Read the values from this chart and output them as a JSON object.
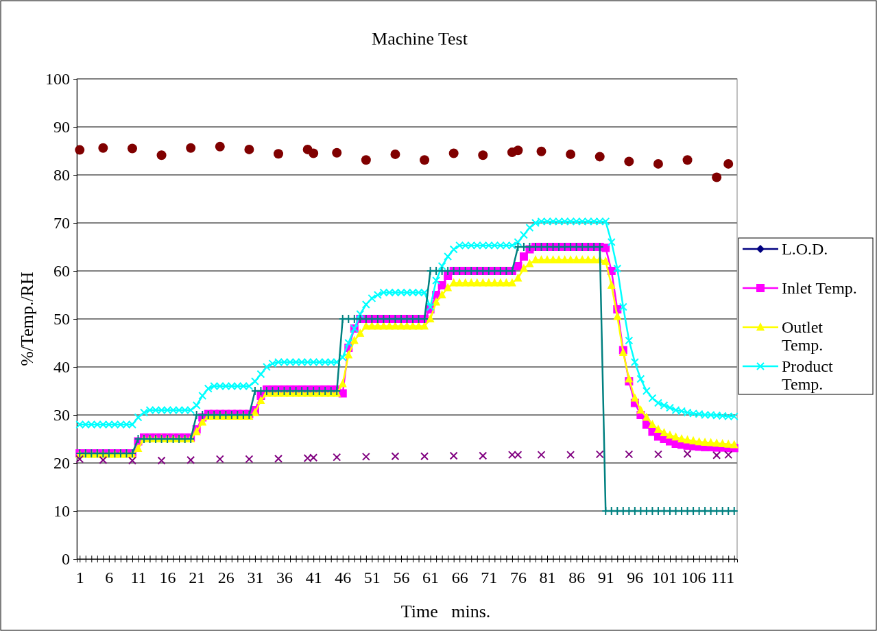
{
  "chart_data": {
    "type": "line",
    "title": "Machine Test",
    "xlabel": "Time   mins.",
    "ylabel": "%/Temp./RH",
    "x": [
      1,
      2,
      3,
      4,
      5,
      6,
      7,
      8,
      9,
      10,
      11,
      12,
      13,
      14,
      15,
      16,
      17,
      18,
      19,
      20,
      21,
      22,
      23,
      24,
      25,
      26,
      27,
      28,
      29,
      30,
      31,
      32,
      33,
      34,
      35,
      36,
      37,
      38,
      39,
      40,
      41,
      42,
      43,
      44,
      45,
      46,
      47,
      48,
      49,
      50,
      51,
      52,
      53,
      54,
      55,
      56,
      57,
      58,
      59,
      60,
      61,
      62,
      63,
      64,
      65,
      66,
      67,
      68,
      69,
      70,
      71,
      72,
      73,
      74,
      75,
      76,
      77,
      78,
      79,
      80,
      81,
      82,
      83,
      84,
      85,
      86,
      87,
      88,
      89,
      90,
      91,
      92,
      93,
      94,
      95,
      96,
      97,
      98,
      99,
      100,
      101,
      102,
      103,
      104,
      105,
      106,
      107,
      108,
      109,
      110,
      111,
      112,
      113
    ],
    "xlim": [
      0.5,
      113.5
    ],
    "xticks": [
      1,
      {
        "value": 2,
        "label": null
      },
      {
        "value": 3,
        "label": null
      },
      {
        "value": 4,
        "label": null
      },
      {
        "value": 5,
        "label": null
      },
      6,
      {
        "value": 7,
        "label": null
      },
      {
        "value": 8,
        "label": null
      },
      {
        "value": 9,
        "label": null
      },
      {
        "value": 10,
        "label": null
      },
      11,
      {
        "value": 12,
        "label": null
      },
      {
        "value": 13,
        "label": null
      },
      {
        "value": 14,
        "label": null
      },
      {
        "value": 15,
        "label": null
      },
      16,
      {
        "value": 17,
        "label": null
      },
      {
        "value": 18,
        "label": null
      },
      {
        "value": 19,
        "label": null
      },
      {
        "value": 20,
        "label": null
      },
      21,
      {
        "value": 22,
        "label": null
      },
      {
        "value": 23,
        "label": null
      },
      {
        "value": 24,
        "label": null
      },
      {
        "value": 25,
        "label": null
      },
      26,
      {
        "value": 27,
        "label": null
      },
      {
        "value": 28,
        "label": null
      },
      {
        "value": 29,
        "label": null
      },
      {
        "value": 30,
        "label": null
      },
      31,
      {
        "value": 32,
        "label": null
      },
      {
        "value": 33,
        "label": null
      },
      {
        "value": 34,
        "label": null
      },
      {
        "value": 35,
        "label": null
      },
      36,
      {
        "value": 37,
        "label": null
      },
      {
        "value": 38,
        "label": null
      },
      {
        "value": 39,
        "label": null
      },
      {
        "value": 40,
        "label": null
      },
      41,
      {
        "value": 42,
        "label": null
      },
      {
        "value": 43,
        "label": null
      },
      {
        "value": 44,
        "label": null
      },
      {
        "value": 45,
        "label": null
      },
      46,
      {
        "value": 47,
        "label": null
      },
      {
        "value": 48,
        "label": null
      },
      {
        "value": 49,
        "label": null
      },
      {
        "value": 50,
        "label": null
      },
      51,
      {
        "value": 52,
        "label": null
      },
      {
        "value": 53,
        "label": null
      },
      {
        "value": 54,
        "label": null
      },
      {
        "value": 55,
        "label": null
      },
      56,
      {
        "value": 57,
        "label": null
      },
      {
        "value": 58,
        "label": null
      },
      {
        "value": 59,
        "label": null
      },
      {
        "value": 60,
        "label": null
      },
      61,
      {
        "value": 62,
        "label": null
      },
      {
        "value": 63,
        "label": null
      },
      {
        "value": 64,
        "label": null
      },
      {
        "value": 65,
        "label": null
      },
      66,
      {
        "value": 67,
        "label": null
      },
      {
        "value": 68,
        "label": null
      },
      {
        "value": 69,
        "label": null
      },
      {
        "value": 70,
        "label": null
      },
      71,
      {
        "value": 72,
        "label": null
      },
      {
        "value": 73,
        "label": null
      },
      {
        "value": 74,
        "label": null
      },
      {
        "value": 75,
        "label": null
      },
      76,
      {
        "value": 77,
        "label": null
      },
      {
        "value": 78,
        "label": null
      },
      {
        "value": 79,
        "label": null
      },
      {
        "value": 80,
        "label": null
      },
      81,
      {
        "value": 82,
        "label": null
      },
      {
        "value": 83,
        "label": null
      },
      {
        "value": 84,
        "label": null
      },
      {
        "value": 85,
        "label": null
      },
      86,
      {
        "value": 87,
        "label": null
      },
      {
        "value": 88,
        "label": null
      },
      {
        "value": 89,
        "label": null
      },
      {
        "value": 90,
        "label": null
      },
      91,
      {
        "value": 92,
        "label": null
      },
      {
        "value": 93,
        "label": null
      },
      {
        "value": 94,
        "label": null
      },
      {
        "value": 95,
        "label": null
      },
      96,
      {
        "value": 97,
        "label": null
      },
      {
        "value": 98,
        "label": null
      },
      {
        "value": 99,
        "label": null
      },
      {
        "value": 100,
        "label": null
      },
      101,
      {
        "value": 102,
        "label": null
      },
      {
        "value": 103,
        "label": null
      },
      {
        "value": 104,
        "label": null
      },
      {
        "value": 105,
        "label": null
      },
      106,
      {
        "value": 107,
        "label": null
      },
      {
        "value": 108,
        "label": null
      },
      {
        "value": 109,
        "label": null
      },
      {
        "value": 110,
        "label": null
      },
      111,
      {
        "value": 112,
        "label": null
      },
      {
        "value": 113,
        "label": null
      }
    ],
    "ylim": [
      0,
      100
    ],
    "yticks": [
      0,
      10,
      20,
      30,
      40,
      50,
      60,
      70,
      80,
      90,
      100
    ],
    "grid": "y",
    "legend": "right",
    "series": [
      {
        "name": "L.O.D.",
        "color": "#000080",
        "marker": "diamond",
        "values": [
          null,
          null,
          null,
          null,
          null,
          null,
          null,
          null,
          null,
          null,
          null,
          null,
          null,
          null,
          null,
          null,
          null,
          null,
          null,
          null,
          null,
          null,
          null,
          null,
          null,
          null,
          null,
          null,
          null,
          null,
          null,
          null,
          null,
          null,
          null,
          null,
          null,
          null,
          null,
          null,
          null,
          null,
          null,
          null,
          null,
          null,
          null,
          null,
          null,
          null,
          null,
          null,
          null,
          null,
          null,
          null,
          null,
          null,
          null,
          null,
          null,
          null,
          null,
          null,
          null,
          null,
          null,
          null,
          null,
          null,
          null,
          null,
          null,
          null,
          null,
          null,
          null,
          null,
          null,
          null,
          null,
          null,
          null,
          null,
          null,
          null,
          null,
          null,
          null,
          null,
          null,
          null,
          null,
          null,
          null,
          null,
          null,
          null,
          null,
          null,
          null,
          null,
          null,
          null,
          null,
          null,
          null,
          null,
          null,
          null,
          null,
          null,
          null
        ]
      },
      {
        "name": "Inlet Temp.",
        "color": "#ff00ff",
        "marker": "square",
        "values": [
          22,
          22,
          22,
          22,
          22,
          22,
          22,
          22,
          22,
          22,
          24.5,
          25.3,
          25.3,
          25.3,
          25.3,
          25.3,
          25.3,
          25.3,
          25.3,
          25.3,
          27,
          29.5,
          30.2,
          30.2,
          30.2,
          30.2,
          30.2,
          30.2,
          30.2,
          30.2,
          31,
          34,
          35.3,
          35.3,
          35.3,
          35.3,
          35.3,
          35.3,
          35.3,
          35.3,
          35.3,
          35.3,
          35.3,
          35.3,
          35.3,
          34.5,
          44,
          48,
          50,
          50,
          50,
          50,
          50,
          50,
          50,
          50,
          50,
          50,
          50,
          50,
          52,
          55,
          57,
          59,
          60,
          60,
          60,
          60,
          60,
          60,
          60,
          60,
          60,
          60,
          60,
          61,
          63,
          64.5,
          65,
          65,
          65,
          65,
          65,
          65,
          65,
          65,
          65,
          65,
          65,
          65,
          64.8,
          60,
          52,
          43.5,
          37,
          32.5,
          30,
          28,
          26.5,
          25.5,
          25,
          24.5,
          24,
          23.8,
          23.6,
          23.5,
          23.4,
          23.3,
          23.3,
          23.2,
          23.2,
          23.1,
          23.1
        ]
      },
      {
        "name": "Outlet Temp.",
        "color": "#ffff00",
        "marker": "triangle",
        "values": [
          21.8,
          21.8,
          21.8,
          21.8,
          21.8,
          21.8,
          21.8,
          21.8,
          21.8,
          21.8,
          23,
          25,
          25,
          25,
          25,
          25,
          25,
          25,
          25,
          25,
          26.5,
          28.5,
          29.7,
          29.7,
          29.7,
          29.7,
          29.7,
          29.7,
          29.7,
          29.7,
          30.5,
          33,
          34.5,
          34.5,
          34.5,
          34.5,
          34.5,
          34.5,
          34.5,
          34.5,
          34.5,
          34.5,
          34.5,
          34.5,
          34.5,
          36.5,
          42.5,
          45.5,
          47,
          48.5,
          48.5,
          48.5,
          48.5,
          48.5,
          48.5,
          48.5,
          48.5,
          48.5,
          48.5,
          48.5,
          50,
          53.5,
          55,
          56.5,
          57.5,
          57.5,
          57.5,
          57.5,
          57.5,
          57.5,
          57.5,
          57.5,
          57.5,
          57.5,
          57.5,
          58.5,
          60.5,
          61.5,
          62.3,
          62.3,
          62.3,
          62.3,
          62.3,
          62.3,
          62.3,
          62.3,
          62.3,
          62.3,
          62.3,
          62.3,
          62,
          57,
          50.5,
          43,
          37.5,
          33.5,
          31,
          29.5,
          28,
          27,
          26.3,
          25.8,
          25.4,
          25,
          24.8,
          24.6,
          24.4,
          24.3,
          24.2,
          24.1,
          24,
          23.9,
          23.8
        ]
      },
      {
        "name": "Product Temp.",
        "color": "#00ffff",
        "marker": "cross",
        "values": [
          28,
          28,
          28,
          28,
          28,
          28,
          28,
          28,
          28,
          28,
          29.5,
          30.5,
          31,
          31,
          31,
          31,
          31,
          31,
          31,
          31,
          32,
          34,
          35.5,
          36,
          36,
          36,
          36,
          36,
          36,
          36,
          37,
          38.5,
          40,
          40.7,
          41,
          41,
          41,
          41,
          41,
          41,
          41,
          41,
          41,
          41,
          41,
          42,
          45,
          48,
          51,
          53,
          54.3,
          55,
          55.5,
          55.5,
          55.5,
          55.5,
          55.5,
          55.5,
          55.5,
          55.5,
          52.5,
          58,
          61,
          63,
          64.5,
          65.3,
          65.3,
          65.3,
          65.3,
          65.3,
          65.3,
          65.3,
          65.3,
          65.3,
          65.3,
          66,
          67.5,
          69,
          70,
          70.3,
          70.3,
          70.3,
          70.3,
          70.3,
          70.3,
          70.3,
          70.3,
          70.3,
          70.3,
          70.3,
          70.3,
          66,
          60.5,
          52.5,
          45.5,
          41,
          37.5,
          35,
          33.5,
          32.5,
          32,
          31.5,
          31,
          30.8,
          30.5,
          30.3,
          30.2,
          30,
          30,
          29.9,
          29.8,
          29.7,
          29.7
        ]
      },
      {
        "type": "scatter",
        "color": "#800080",
        "marker": "cross",
        "x": [
          1,
          5,
          10,
          15,
          20,
          25,
          30,
          35,
          40,
          41,
          45,
          50,
          55,
          60,
          65,
          70,
          75,
          76,
          80,
          85,
          90,
          95,
          100,
          105,
          110,
          112
        ],
        "values": [
          20.8,
          20.6,
          20.5,
          20.5,
          20.6,
          20.8,
          20.8,
          20.9,
          21,
          21.1,
          21.2,
          21.3,
          21.4,
          21.4,
          21.5,
          21.5,
          21.7,
          21.7,
          21.7,
          21.7,
          21.8,
          21.8,
          21.8,
          21.9,
          21.6,
          21.7
        ]
      },
      {
        "type": "scatter",
        "color": "#800000",
        "marker": "circle",
        "x": [
          1,
          5,
          10,
          15,
          20,
          25,
          30,
          35,
          40,
          41,
          45,
          50,
          55,
          60,
          65,
          70,
          75,
          76,
          80,
          85,
          90,
          95,
          100,
          105,
          110,
          112
        ],
        "values": [
          85.2,
          85.6,
          85.5,
          84.1,
          85.6,
          85.9,
          85.3,
          84.4,
          85.3,
          84.5,
          84.6,
          83.1,
          84.3,
          83.1,
          84.5,
          84.1,
          84.7,
          85.1,
          84.9,
          84.3,
          83.8,
          82.8,
          82.3,
          83.1,
          79.5,
          82.3
        ]
      },
      {
        "color": "#008080",
        "marker": "plus",
        "values": [
          22,
          22,
          22,
          22,
          22,
          22,
          22,
          22,
          22,
          22,
          25,
          25,
          25,
          25,
          25,
          25,
          25,
          25,
          25,
          25,
          30,
          30,
          30,
          30,
          30,
          30,
          30,
          30,
          30,
          30,
          35,
          35,
          35,
          35,
          35,
          35,
          35,
          35,
          35,
          35,
          35,
          35,
          35,
          35,
          35,
          50,
          50,
          50,
          50,
          50,
          50,
          50,
          50,
          50,
          50,
          50,
          50,
          50,
          50,
          50,
          60,
          60,
          60,
          60,
          60,
          60,
          60,
          60,
          60,
          60,
          60,
          60,
          60,
          60,
          60,
          65,
          65,
          65,
          65,
          65,
          65,
          65,
          65,
          65,
          65,
          65,
          65,
          65,
          65,
          65,
          10,
          10,
          10,
          10,
          10,
          10,
          10,
          10,
          10,
          10,
          10,
          10,
          10,
          10,
          10,
          10,
          10,
          10,
          10,
          10,
          10,
          10,
          10
        ]
      }
    ]
  }
}
